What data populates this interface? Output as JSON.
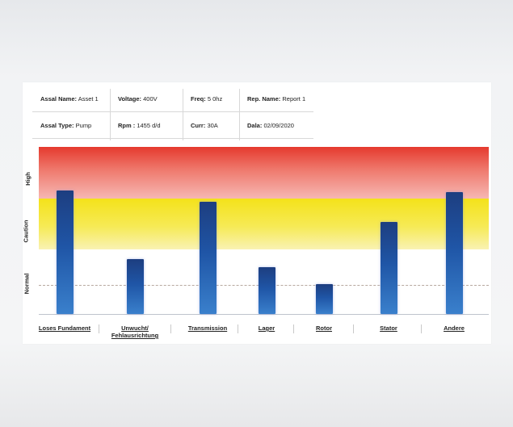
{
  "info": {
    "row1": [
      {
        "label": "Assal Name:",
        "value": "Asset 1"
      },
      {
        "label": "Voltage:",
        "value": "400V"
      },
      {
        "label": "Freq:",
        "value": "5 0hz"
      },
      {
        "label": "Rep. Name:",
        "value": "Report 1"
      }
    ],
    "row2": [
      {
        "label": "Assal Type:",
        "value": "Pump"
      },
      {
        "label": "Rpm :",
        "value": "1455 d/d"
      },
      {
        "label": "Curr:",
        "value": "30A"
      },
      {
        "label": "Dala:",
        "value": "02/09/2020"
      }
    ]
  },
  "chart_data": {
    "type": "bar",
    "zones": [
      "High",
      "Caution",
      "Normal"
    ],
    "categories": [
      "Loses Fundament",
      "Unwucht/\nFehlausrichtung",
      "Transmission",
      "Lager",
      "Rotor",
      "Stator",
      "Andere"
    ],
    "values": [
      0.74,
      0.33,
      0.67,
      0.28,
      0.18,
      0.55,
      0.73
    ],
    "colors": {
      "high": "#e53a2e",
      "caution": "#f4e21a",
      "bar": "#1f55a6"
    }
  }
}
